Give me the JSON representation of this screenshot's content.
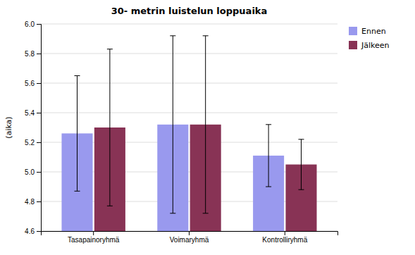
{
  "chart_data": {
    "type": "bar",
    "title": "30- metrin luistelun loppuaika",
    "ylabel": "(aika)",
    "categories": [
      "Tasapainoryhmä",
      "Voimaryhmä",
      "Kontrolliryhmä"
    ],
    "series": [
      {
        "name": "Ennen",
        "color": "#9999ee",
        "values": [
          5.26,
          5.32,
          5.11
        ],
        "errors": [
          0.39,
          0.6,
          0.21
        ]
      },
      {
        "name": "Jälkeen",
        "color": "#883355",
        "values": [
          5.3,
          5.32,
          5.05
        ],
        "errors": [
          0.53,
          0.6,
          0.17
        ]
      }
    ],
    "ylim": [
      4.6,
      6.0
    ],
    "yticks": [
      4.6,
      4.8,
      {
        "value": 5.0,
        "label": "5.0"
      },
      5.2,
      5.4,
      5.6,
      5.8,
      {
        "value": 6.0,
        "label": "6.0"
      }
    ],
    "grid": true,
    "legend": "right"
  }
}
